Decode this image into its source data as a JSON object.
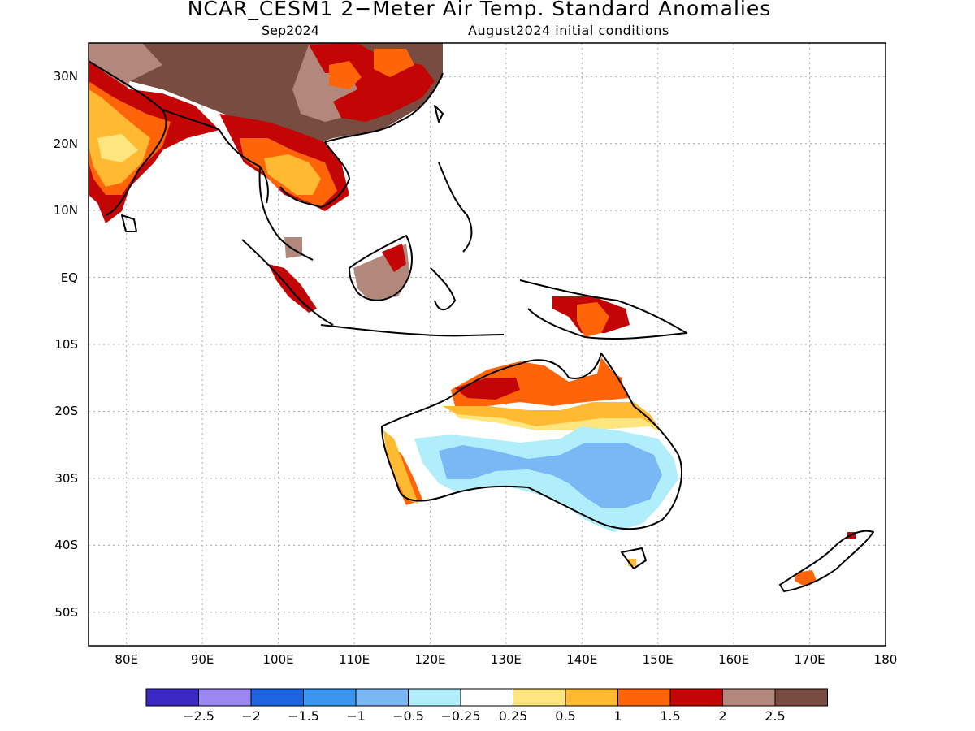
{
  "title": "NCAR_CESM1 2−Meter Air Temp. Standard Anomalies",
  "subtitle_left": "Sep2024",
  "subtitle_right": "August2024 initial conditions",
  "lat_ticks": [
    "30N",
    "20N",
    "10N",
    "EQ",
    "10S",
    "20S",
    "30S",
    "40S",
    "50S"
  ],
  "lon_ticks": [
    "80E",
    "90E",
    "100E",
    "110E",
    "120E",
    "130E",
    "140E",
    "150E",
    "160E",
    "170E",
    "180"
  ],
  "map_extent": {
    "lon": [
      75,
      180
    ],
    "lat": [
      -55,
      35
    ]
  },
  "colorbar": {
    "colors": [
      "#3a28c0",
      "#9b87f2",
      "#1e64e0",
      "#3b96ef",
      "#79b8f5",
      "#b1eefb",
      "#ffffff",
      "#ffe57e",
      "#ffba31",
      "#ff6408",
      "#c40505",
      "#b3887c",
      "#784c41"
    ],
    "labels": [
      "−2.5",
      "−2",
      "−1.5",
      "−1",
      "−0.5",
      "−0.25",
      "0.25",
      "0.5",
      "1",
      "1.5",
      "2",
      "2.5"
    ]
  }
}
